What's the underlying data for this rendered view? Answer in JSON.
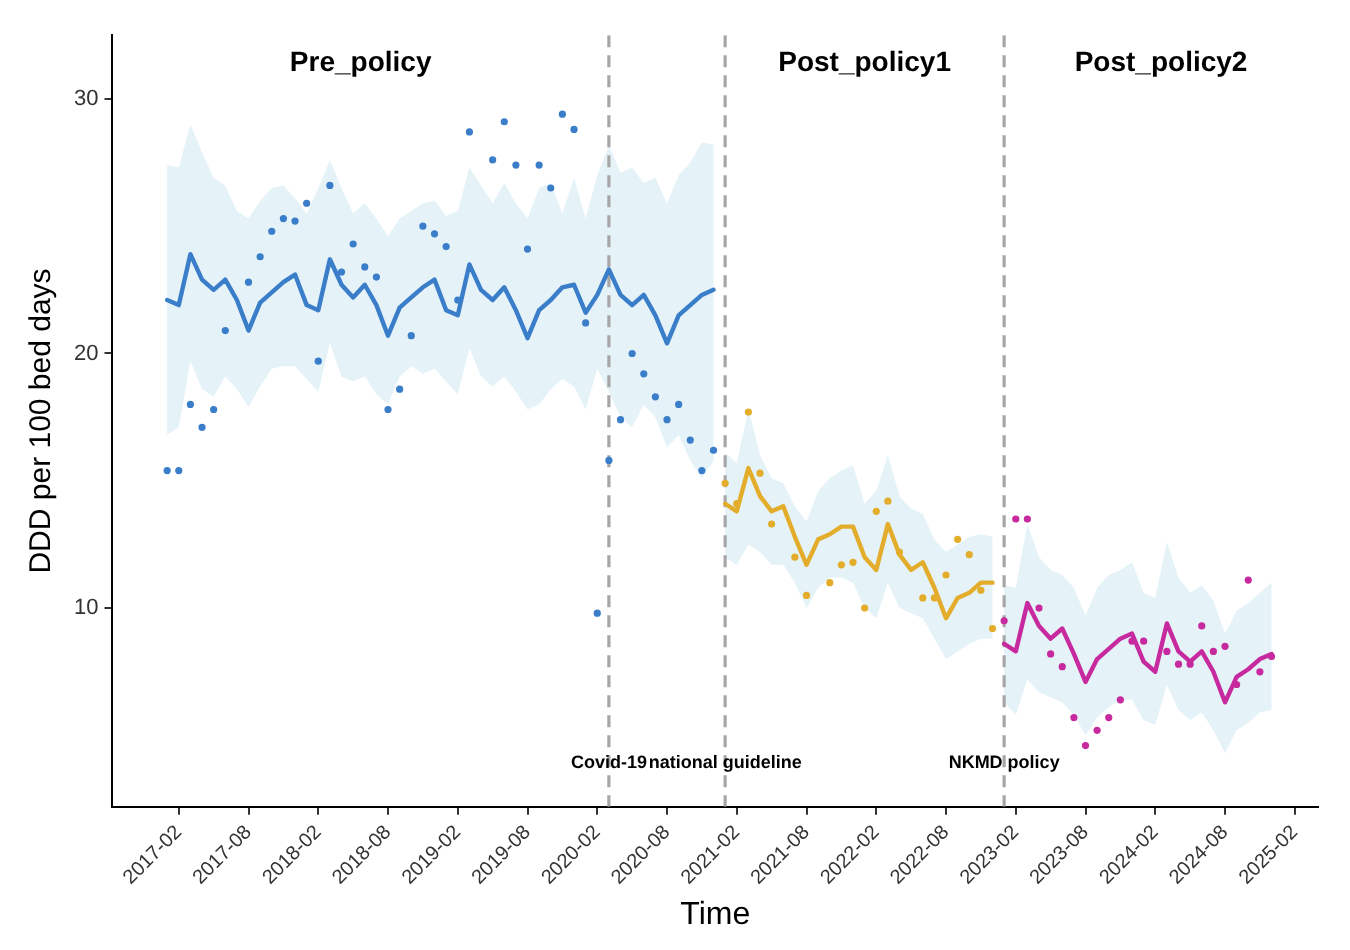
{
  "chart_data": {
    "type": "line",
    "xlabel": "Time",
    "ylabel": "DDD per 100 bed days",
    "xlim": [
      "2016-08-10",
      "2025-04-01"
    ],
    "xticks": [
      "2017-02",
      "2017-08",
      "2018-02",
      "2018-08",
      "2019-02",
      "2019-08",
      "2020-02",
      "2020-08",
      "2021-02",
      "2021-08",
      "2022-02",
      "2022-08",
      "2023-02",
      "2023-08",
      "2024-02",
      "2024-08",
      "2025-02"
    ],
    "ylim": [
      2.2,
      32.5
    ],
    "yticks": [
      10,
      20,
      30
    ],
    "series": [
      {
        "color": "#3a7dc9",
        "x": [
          "2017-01",
          "2017-02",
          "2017-03",
          "2017-04",
          "2017-05",
          "2017-06",
          "2017-07",
          "2017-08",
          "2017-09",
          "2017-10",
          "2017-11",
          "2017-12",
          "2018-01",
          "2018-02",
          "2018-03",
          "2018-04",
          "2018-05",
          "2018-06",
          "2018-07",
          "2018-08",
          "2018-09",
          "2018-10",
          "2018-11",
          "2018-12",
          "2019-01",
          "2019-02",
          "2019-03",
          "2019-04",
          "2019-05",
          "2019-06",
          "2019-07",
          "2019-08",
          "2019-09",
          "2019-10",
          "2019-11",
          "2019-12",
          "2020-01",
          "2020-02",
          "2020-03",
          "2020-04",
          "2020-05",
          "2020-06",
          "2020-07",
          "2020-08",
          "2020-09",
          "2020-10",
          "2020-11",
          "2020-12"
        ],
        "values": [
          22.1,
          21.9,
          23.9,
          22.9,
          22.5,
          22.9,
          22.1,
          20.9,
          22.0,
          22.4,
          22.8,
          23.1,
          21.9,
          21.7,
          23.7,
          22.7,
          22.2,
          22.7,
          21.9,
          20.7,
          21.8,
          22.2,
          22.6,
          22.9,
          21.7,
          21.5,
          23.5,
          22.5,
          22.1,
          22.6,
          21.7,
          20.6,
          21.7,
          22.1,
          22.6,
          22.7,
          21.6,
          22.3,
          23.3,
          22.3,
          21.9,
          22.3,
          21.5,
          20.4,
          21.5,
          21.9,
          22.3,
          22.5
        ],
        "lower": [
          16.8,
          17.1,
          19.7,
          18.6,
          18.3,
          19.1,
          18.6,
          17.9,
          18.7,
          19.4,
          19.5,
          19.5,
          19.0,
          18.5,
          20.4,
          19.1,
          18.9,
          19.1,
          18.4,
          18.0,
          19.1,
          19.5,
          19.2,
          19.4,
          18.9,
          18.4,
          20.2,
          19.1,
          18.7,
          19.1,
          18.5,
          17.8,
          18.0,
          18.6,
          19.0,
          18.7,
          17.8,
          19.4,
          18.5,
          17.5,
          17.1,
          18.0,
          17.5,
          16.3,
          16.8,
          15.8,
          15.1,
          15.8
        ],
        "upper": [
          27.4,
          27.3,
          29.0,
          27.9,
          26.9,
          26.6,
          25.6,
          25.3,
          26.0,
          26.5,
          26.6,
          26.1,
          25.5,
          26.5,
          27.6,
          26.5,
          25.5,
          25.9,
          25.3,
          24.6,
          25.3,
          25.6,
          25.9,
          26.0,
          25.4,
          25.6,
          27.3,
          26.6,
          25.9,
          26.7,
          25.9,
          25.3,
          26.5,
          26.7,
          25.5,
          26.9,
          25.3,
          27.0,
          28.2,
          27.1,
          27.3,
          26.7,
          26.9,
          25.9,
          27.0,
          27.5,
          28.3,
          28.2
        ]
      },
      {
        "type": "scatter",
        "marker": "circle",
        "color": "#3a7dc9",
        "x": [
          "2017-01",
          "2017-02",
          "2017-03",
          "2017-04",
          "2017-05",
          "2017-06",
          "2017-07",
          "2017-08",
          "2017-09",
          "2017-10",
          "2017-11",
          "2017-12",
          "2018-01",
          "2018-02",
          "2018-03",
          "2018-04",
          "2018-05",
          "2018-06",
          "2018-07",
          "2018-08",
          "2018-09",
          "2018-10",
          "2018-11",
          "2018-12",
          "2019-01",
          "2019-02",
          "2019-03",
          "2019-04",
          "2019-05",
          "2019-06",
          "2019-07",
          "2019-08",
          "2019-09",
          "2019-10",
          "2019-11",
          "2019-12",
          "2020-01",
          "2020-02",
          "2020-03",
          "2020-04",
          "2020-05",
          "2020-06",
          "2020-07",
          "2020-08",
          "2020-09",
          "2020-10",
          "2020-11",
          "2020-12"
        ],
        "values": [
          15.4,
          15.4,
          18.0,
          17.1,
          17.8,
          20.9,
          null,
          22.8,
          23.8,
          24.8,
          25.3,
          25.2,
          25.9,
          19.7,
          26.6,
          23.2,
          24.3,
          23.4,
          23.0,
          17.8,
          18.6,
          20.7,
          25.0,
          24.7,
          24.2,
          22.1,
          28.7,
          null,
          27.6,
          29.1,
          27.4,
          24.1,
          27.4,
          26.5,
          29.4,
          28.8,
          21.2,
          9.8,
          15.8,
          17.4,
          20.0,
          19.2,
          18.3,
          17.4,
          18.0,
          16.6,
          15.4,
          16.2
        ]
      },
      {
        "color": "#e3ad2b",
        "x": [
          "2021-01",
          "2021-02",
          "2021-03",
          "2021-04",
          "2021-05",
          "2021-06",
          "2021-07",
          "2021-08",
          "2021-09",
          "2021-10",
          "2021-11",
          "2021-12",
          "2022-01",
          "2022-02",
          "2022-03",
          "2022-04",
          "2022-05",
          "2022-06",
          "2022-07",
          "2022-08",
          "2022-09",
          "2022-10",
          "2022-11",
          "2022-12"
        ],
        "values": [
          14.1,
          13.8,
          15.5,
          14.4,
          13.8,
          14.0,
          12.8,
          11.7,
          12.7,
          12.9,
          13.2,
          13.2,
          12.0,
          11.5,
          13.3,
          12.1,
          11.5,
          11.8,
          10.8,
          9.6,
          10.4,
          10.6,
          11.0,
          11.0
        ],
        "lower": [
          12.0,
          11.7,
          12.5,
          12.2,
          11.7,
          11.7,
          11.0,
          10.0,
          10.8,
          11.2,
          11.2,
          11.0,
          10.0,
          9.6,
          11.0,
          10.0,
          9.8,
          9.6,
          8.8,
          8.0,
          8.3,
          8.6,
          8.8,
          8.8
        ],
        "upper": [
          16.1,
          15.7,
          17.8,
          16.0,
          15.1,
          14.9,
          14.0,
          13.4,
          14.6,
          15.1,
          15.4,
          15.6,
          14.1,
          14.6,
          16.0,
          14.4,
          13.9,
          13.7,
          12.7,
          12.2,
          12.5,
          12.8,
          12.9,
          12.8
        ]
      },
      {
        "type": "scatter",
        "marker": "circle",
        "color": "#e3ad2b",
        "x": [
          "2021-01",
          "2021-02",
          "2021-03",
          "2021-04",
          "2021-05",
          "2021-06",
          "2021-07",
          "2021-08",
          "2021-09",
          "2021-10",
          "2021-11",
          "2021-12",
          "2022-01",
          "2022-02",
          "2022-03",
          "2022-04",
          "2022-05",
          "2022-06",
          "2022-07",
          "2022-08",
          "2022-09",
          "2022-10",
          "2022-11",
          "2022-12"
        ],
        "values": [
          14.9,
          14.1,
          17.7,
          15.3,
          13.3,
          null,
          12.0,
          10.5,
          null,
          11.0,
          11.7,
          11.8,
          10.0,
          13.8,
          14.2,
          12.2,
          null,
          10.4,
          10.4,
          11.3,
          12.7,
          12.1,
          10.7,
          9.2
        ]
      },
      {
        "color": "#c72a9e",
        "x": [
          "2023-01",
          "2023-02",
          "2023-03",
          "2023-04",
          "2023-05",
          "2023-06",
          "2023-07",
          "2023-08",
          "2023-09",
          "2023-10",
          "2023-11",
          "2023-12",
          "2024-01",
          "2024-02",
          "2024-03",
          "2024-04",
          "2024-05",
          "2024-06",
          "2024-07",
          "2024-08",
          "2024-09",
          "2024-10",
          "2024-11",
          "2024-12"
        ],
        "values": [
          8.6,
          8.3,
          10.2,
          9.3,
          8.8,
          9.2,
          8.2,
          7.1,
          8.0,
          8.4,
          8.8,
          9.0,
          7.9,
          7.5,
          9.4,
          8.3,
          7.9,
          8.3,
          7.5,
          6.3,
          7.3,
          7.6,
          8.0,
          8.2
        ],
        "lower": [
          6.3,
          5.8,
          7.2,
          6.7,
          6.5,
          6.3,
          5.8,
          5.0,
          5.7,
          6.1,
          6.4,
          6.4,
          5.6,
          5.4,
          7.0,
          6.0,
          5.6,
          5.9,
          5.2,
          4.3,
          5.2,
          5.5,
          5.9,
          6.0
        ],
        "upper": [
          10.9,
          10.8,
          13.3,
          12.0,
          11.5,
          11.3,
          10.8,
          9.7,
          10.8,
          11.3,
          11.5,
          11.8,
          10.6,
          10.4,
          12.6,
          11.2,
          10.6,
          10.9,
          10.3,
          9.0,
          9.9,
          10.2,
          10.6,
          11.0
        ]
      },
      {
        "type": "scatter",
        "marker": "circle",
        "color": "#c72a9e",
        "x": [
          "2023-01",
          "2023-02",
          "2023-03",
          "2023-04",
          "2023-05",
          "2023-06",
          "2023-07",
          "2023-08",
          "2023-09",
          "2023-10",
          "2023-11",
          "2023-12",
          "2024-01",
          "2024-02",
          "2024-03",
          "2024-04",
          "2024-05",
          "2024-06",
          "2024-07",
          "2024-08",
          "2024-09",
          "2024-10",
          "2024-11",
          "2024-12"
        ],
        "values": [
          9.5,
          13.5,
          13.5,
          10.0,
          8.2,
          7.7,
          5.7,
          4.6,
          5.2,
          5.7,
          6.4,
          8.7,
          8.7,
          null,
          8.3,
          7.8,
          7.8,
          9.3,
          8.3,
          8.5,
          7.0,
          11.1,
          7.5,
          8.1
        ]
      }
    ],
    "ref_lines": [
      {
        "axis": "x",
        "value": "2020-03",
        "label": "Covid-19",
        "color": "#a6a6a6",
        "line_style": "dashed"
      },
      {
        "axis": "x",
        "value": "2021-01",
        "label": "national guideline",
        "color": "#a6a6a6",
        "line_style": "dashed"
      },
      {
        "axis": "x",
        "value": "2023-01",
        "label": "NKMD policy",
        "color": "#a6a6a6",
        "line_style": "dashed"
      }
    ],
    "annotations": [
      "Pre_policy",
      "Post_policy1",
      "Post_policy2"
    ]
  }
}
